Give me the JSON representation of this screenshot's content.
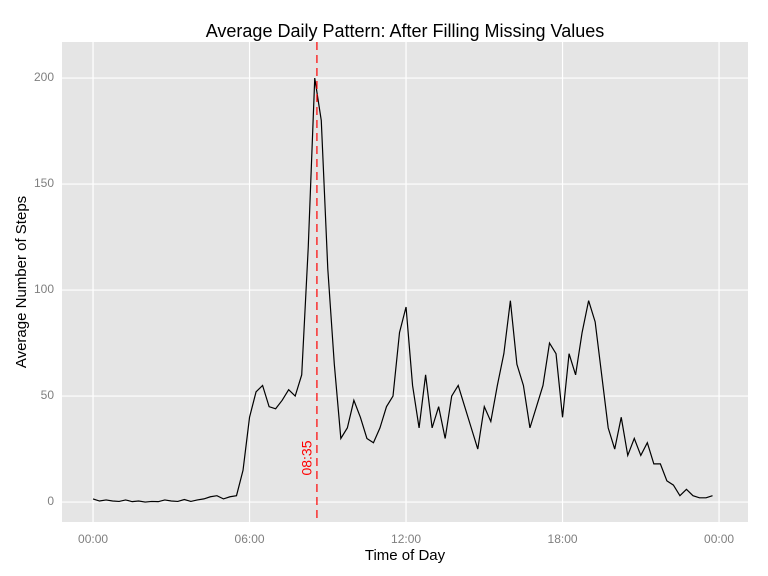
{
  "chart_data": {
    "type": "line",
    "title": "Average Daily Pattern: After Filling Missing Values",
    "x_label": "Time of Day",
    "y_label": "Average Number of Steps",
    "x": [
      0,
      0.25,
      0.5,
      0.75,
      1,
      1.25,
      1.5,
      1.75,
      2,
      2.25,
      2.5,
      2.75,
      3,
      3.25,
      3.5,
      3.75,
      4,
      4.25,
      4.5,
      4.75,
      5,
      5.25,
      5.5,
      5.75,
      6,
      6.25,
      6.5,
      6.75,
      7,
      7.25,
      7.5,
      7.75,
      8,
      8.25,
      8.5,
      8.75,
      9,
      9.25,
      9.5,
      9.75,
      10,
      10.25,
      10.5,
      10.75,
      11,
      11.25,
      11.5,
      11.75,
      12,
      12.25,
      12.5,
      12.75,
      13,
      13.25,
      13.5,
      13.75,
      14,
      14.25,
      14.5,
      14.75,
      15,
      15.25,
      15.5,
      15.75,
      16,
      16.25,
      16.5,
      16.75,
      17,
      17.25,
      17.5,
      17.75,
      18,
      18.25,
      18.5,
      18.75,
      19,
      19.25,
      19.5,
      19.75,
      20,
      20.25,
      20.5,
      20.75,
      21,
      21.25,
      21.5,
      21.75,
      22,
      22.25,
      22.5,
      22.75,
      23,
      23.25,
      23.5,
      23.75
    ],
    "series": [
      {
        "color": "#000000",
        "values": [
          1.5,
          0.5,
          1,
          0.5,
          0.3,
          1,
          0.2,
          0.5,
          0,
          0.3,
          0.2,
          1,
          0.5,
          0.3,
          1.2,
          0.3,
          1,
          1.5,
          2.5,
          3,
          1.5,
          2.5,
          3,
          15,
          40,
          52,
          55,
          45,
          44,
          48,
          53,
          50,
          60,
          120,
          200,
          180,
          110,
          65,
          30,
          35,
          48,
          40,
          30,
          28,
          35,
          45,
          50,
          80,
          92,
          55,
          35,
          60,
          35,
          45,
          30,
          50,
          55,
          45,
          35,
          25,
          45,
          38,
          55,
          70,
          95,
          65,
          55,
          35,
          45,
          55,
          75,
          70,
          40,
          70,
          60,
          80,
          95,
          85,
          60,
          35,
          25,
          40,
          22,
          30,
          22,
          28,
          18,
          18,
          10,
          8,
          3,
          6,
          3,
          2,
          2,
          3
        ]
      }
    ],
    "xlim": [
      -1.19,
      25.11
    ],
    "xticks": [
      {
        "value": 0,
        "label": "00:00"
      },
      {
        "value": 6,
        "label": "06:00"
      },
      {
        "value": 12,
        "label": "12:00"
      },
      {
        "value": 18,
        "label": "18:00"
      },
      {
        "value": 24,
        "label": "00:00"
      }
    ],
    "ylim": [
      -9.4,
      217
    ],
    "yticks": [
      0,
      50,
      100,
      150,
      200
    ],
    "grid": true,
    "vline": {
      "value": 8.5833,
      "label": "08:35",
      "color": "#ff0000"
    }
  }
}
